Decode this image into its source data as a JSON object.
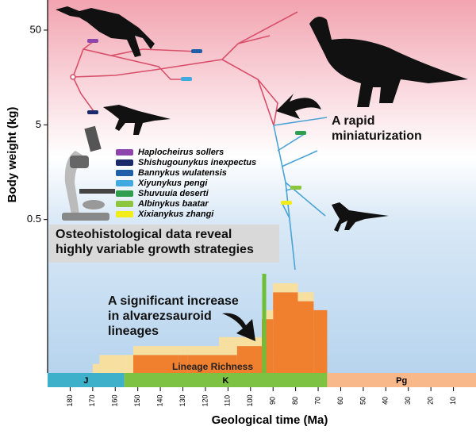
{
  "chart_data": [
    {
      "type": "tree",
      "y_label": "Body weight (kg)",
      "x_label": "Geological time (Ma)",
      "log_y": true,
      "xlim": [
        190,
        0
      ],
      "xticks": [
        180,
        170,
        160,
        150,
        140,
        130,
        120,
        110,
        100,
        90,
        80,
        70,
        60,
        50,
        40,
        30,
        20,
        10
      ],
      "ylim": [
        0.012,
        104
      ],
      "yticks": [
        0.5,
        5,
        50
      ],
      "periods": [
        {
          "name": "J",
          "start": 190,
          "end": 156,
          "color": "#3fb0c9"
        },
        {
          "name": "K",
          "start": 156,
          "end": 66,
          "color": "#7dc242"
        },
        {
          "name": "Pg",
          "start": 66,
          "end": 0,
          "color": "#f9b88a"
        }
      ],
      "taxa": [
        {
          "name": "Haplocheirus sollers",
          "color": "#8e44ad"
        },
        {
          "name": "Shishugounykus inexpectus",
          "color": "#1c2a6b"
        },
        {
          "name": "Bannykus wulatensis",
          "color": "#1f5fa8"
        },
        {
          "name": "Xiyunykus pengi",
          "color": "#3fa9e0"
        },
        {
          "name": "Shuvuuia deserti",
          "color": "#2e9e4f"
        },
        {
          "name": "Albinykus baatar",
          "color": "#8cc63f"
        },
        {
          "name": "Xixianykus zhangi",
          "color": "#f2ec1a"
        }
      ],
      "annotations": [
        {
          "lines": [
            "A rapid",
            "miniaturization"
          ]
        },
        {
          "lines": [
            "Osteohistological data reveal",
            "highly variable growth strategies"
          ]
        },
        {
          "lines": [
            "A significant increase",
            "in alvarezsauroid",
            "lineages"
          ]
        }
      ]
    },
    {
      "type": "histogram",
      "label": "Lineage Richness",
      "xlim": [
        190,
        0
      ],
      "ylim": [
        0,
        10
      ],
      "bins": [
        170,
        167,
        162,
        157,
        152,
        132,
        128,
        114,
        106,
        95,
        90,
        79,
        72,
        66
      ],
      "series": [
        {
          "color": "#f07f2e",
          "values": [
            0,
            0,
            0,
            0,
            2,
            2,
            2,
            2,
            3,
            6,
            9,
            8,
            7
          ]
        },
        {
          "color": "#f7dfa0",
          "values": [
            1,
            2,
            2,
            2,
            1,
            1,
            1,
            2,
            1,
            1,
            1,
            1,
            0
          ]
        }
      ]
    }
  ]
}
